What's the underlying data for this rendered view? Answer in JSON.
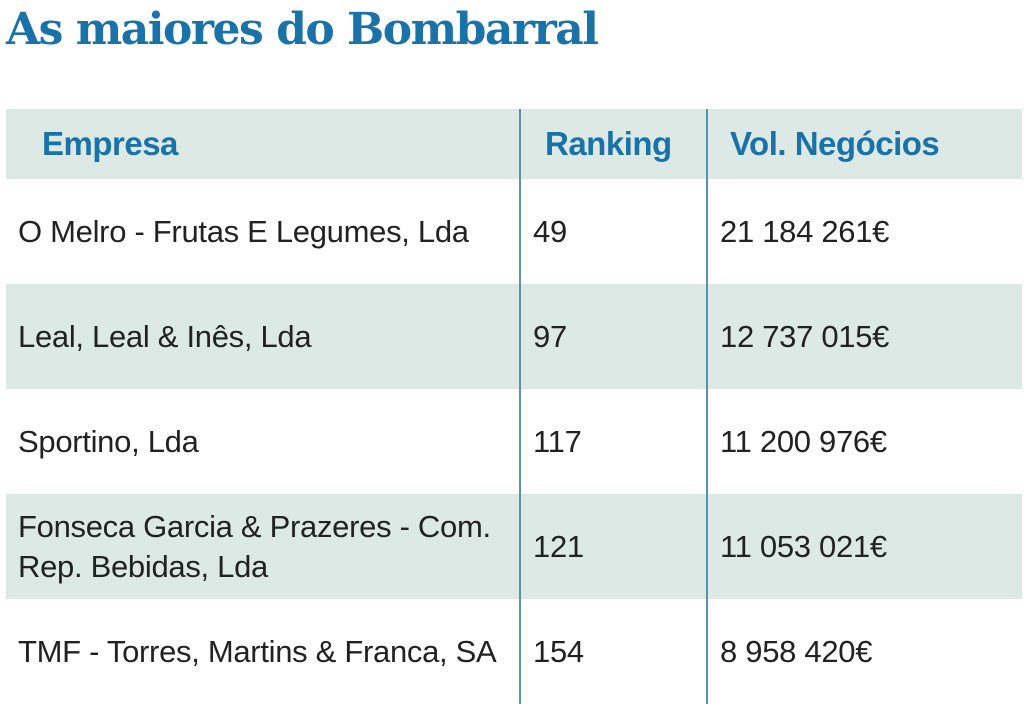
{
  "title": "As maiores do Bombarral",
  "table": {
    "headers": [
      "Empresa",
      "Ranking",
      "Vol. Negócios"
    ],
    "rows": [
      {
        "empresa": "O Melro - Frutas E Legumes, Lda",
        "ranking": "49",
        "volume": "21 184 261€"
      },
      {
        "empresa": "Leal, Leal & Inês, Lda",
        "ranking": "97",
        "volume": "12 737 015€"
      },
      {
        "empresa": "Sportino, Lda",
        "ranking": "117",
        "volume": "11 200 976€"
      },
      {
        "empresa": "Fonseca Garcia & Prazeres - Com. Rep. Bebidas, Lda",
        "ranking": "121",
        "volume": "11 053 021€"
      },
      {
        "empresa": "TMF - Torres, Martins & Franca, SA",
        "ranking": "154",
        "volume": "8 958 420€"
      }
    ]
  },
  "colors": {
    "accent": "#1a73a8",
    "band": "#dce9e5",
    "divider": "#5a93a8",
    "text": "#222222"
  }
}
